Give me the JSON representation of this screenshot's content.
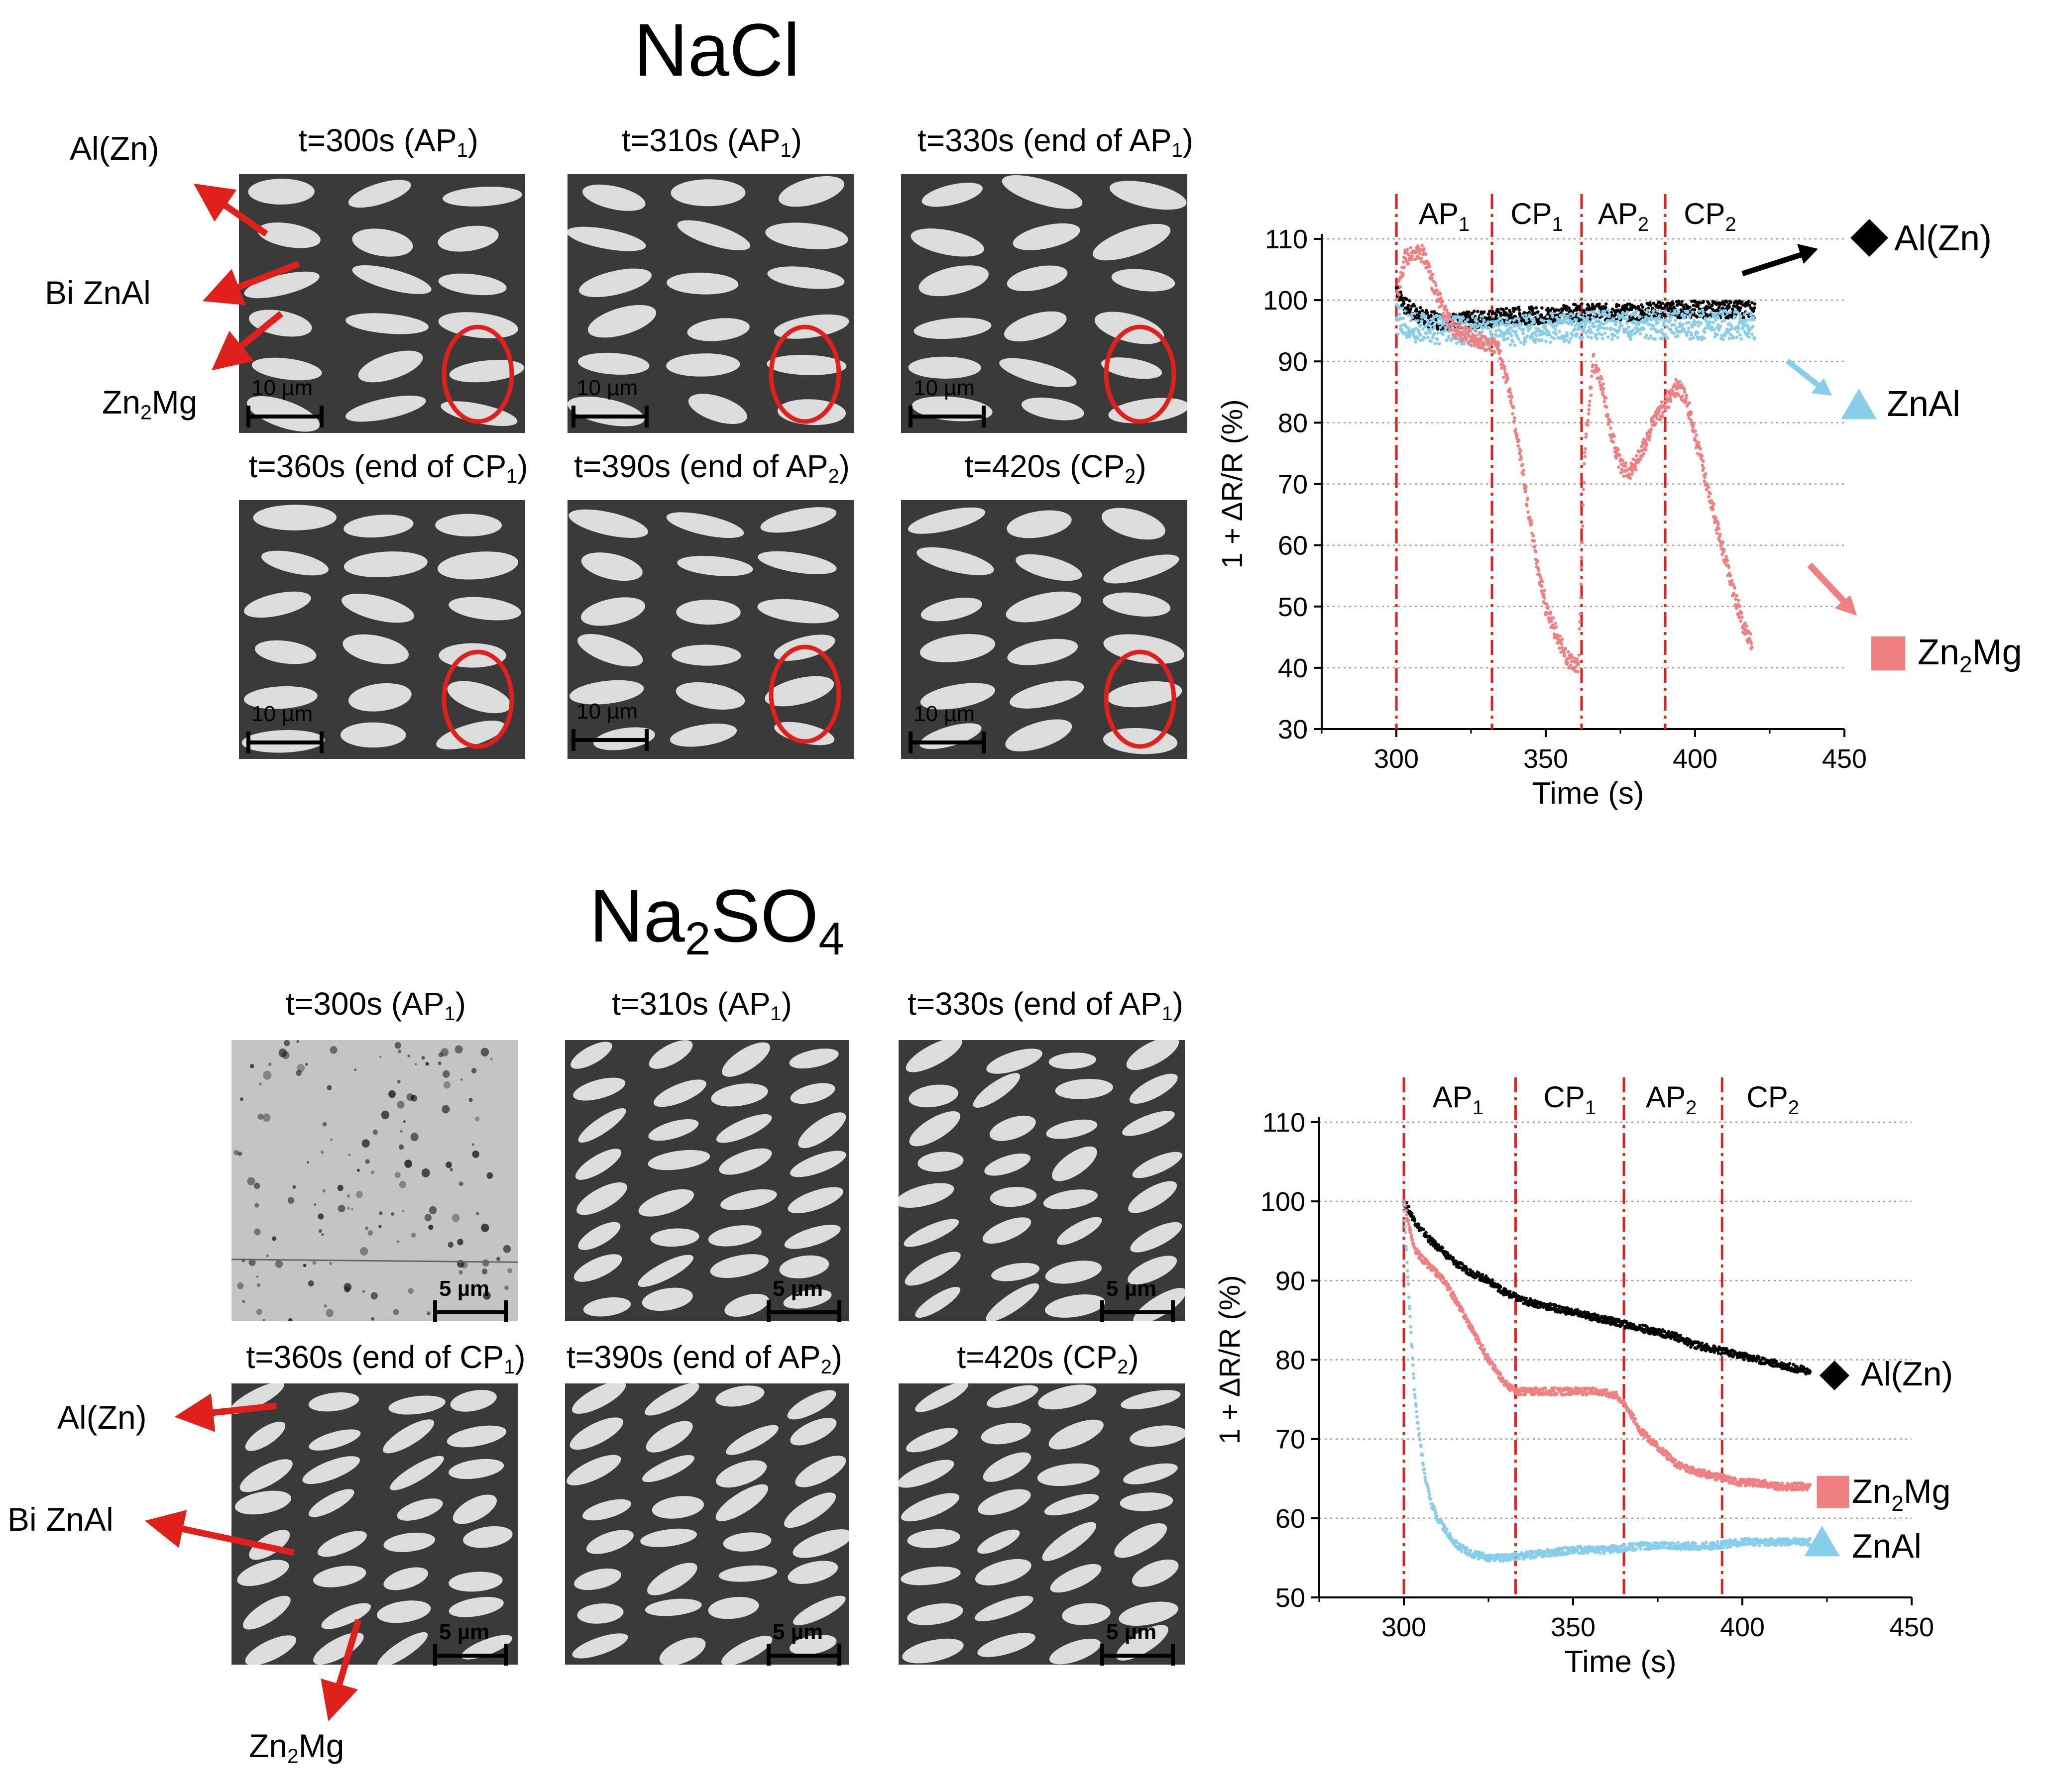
{
  "titles": {
    "nacl": "NaCl",
    "na2so4": {
      "base": "Na",
      "sub1": "2",
      "mid": "SO",
      "sub2": "4"
    }
  },
  "nacl_panels": [
    {
      "t": "t=300s (AP",
      "sub": "1",
      "tail": ")",
      "scale": "10 µm"
    },
    {
      "t": "t=310s (AP",
      "sub": "1",
      "tail": ")",
      "scale": "10 µm"
    },
    {
      "t": "t=330s (end of AP",
      "sub": "1",
      "tail": ")",
      "scale": "10 µm"
    },
    {
      "t": "t=360s (end of CP",
      "sub": "1",
      "tail": ")",
      "scale": "10 µm"
    },
    {
      "t": "t=390s (end of AP",
      "sub": "2",
      "tail": ")",
      "scale": "10 µm"
    },
    {
      "t": "t=420s (CP",
      "sub": "2",
      "tail": ")",
      "scale": "10 µm"
    }
  ],
  "na2so4_panels": [
    {
      "t": "t=300s (AP",
      "sub": "1",
      "tail": ")",
      "scale": "5 µm"
    },
    {
      "t": "t=310s (AP",
      "sub": "1",
      "tail": ")",
      "scale": "5 µm"
    },
    {
      "t": "t=330s (end of AP",
      "sub": "1",
      "tail": ")",
      "scale": "5 µm"
    },
    {
      "t": "t=360s (end of CP",
      "sub": "1",
      "tail": ")",
      "scale": "5 µm"
    },
    {
      "t": "t=390s (end of AP",
      "sub": "2",
      "tail": ")",
      "scale": "5 µm"
    },
    {
      "t": "t=420s (CP",
      "sub": "2",
      "tail": ")",
      "scale": "5 µm"
    }
  ],
  "phase_labels": {
    "alzn": "Al(Zn)",
    "bizn": "Bi ZnAl",
    "zn2mg": {
      "a": "Zn",
      "sub": "2",
      "b": "Mg"
    }
  },
  "colors": {
    "alzn": "#000000",
    "znal": "#87CEEB",
    "zn2mg": "#F08080",
    "arrow": "#E0201A",
    "ellipse": "#E0201A",
    "period_line": "#E0201A"
  },
  "chart_data": [
    {
      "type": "scatter",
      "panel": "NaCl",
      "xlabel": "Time (s)",
      "ylabel": "1 + ΔR/R (%)",
      "xlim": [
        275,
        450
      ],
      "ylim": [
        30,
        110
      ],
      "xticks": [
        300,
        350,
        400,
        450
      ],
      "yticks": [
        30,
        40,
        50,
        60,
        70,
        80,
        90,
        100,
        110
      ],
      "horizontal_grid": true,
      "period_boundaries": [
        300,
        332,
        362,
        390
      ],
      "periods": [
        {
          "base": "AP",
          "sub": "1",
          "x": 316
        },
        {
          "base": "CP",
          "sub": "1",
          "x": 347
        },
        {
          "base": "AP",
          "sub": "2",
          "x": 376
        },
        {
          "base": "CP",
          "sub": "2",
          "x": 405
        }
      ],
      "series": [
        {
          "name": "Al(Zn)",
          "marker": "diamond",
          "color": "#000000",
          "x": [
            300,
            303,
            306,
            310,
            315,
            320,
            330,
            340,
            350,
            360,
            370,
            380,
            390,
            400,
            410,
            420
          ],
          "y": [
            102,
            99,
            98,
            97,
            96.5,
            96.5,
            97,
            97.5,
            97.5,
            98,
            98,
            98,
            98.5,
            98.5,
            98.5,
            98.5
          ]
        },
        {
          "name": "ZnAl",
          "marker": "triangle",
          "color": "#87CEEB",
          "x": [
            300,
            303,
            306,
            310,
            315,
            320,
            330,
            340,
            350,
            360,
            370,
            380,
            390,
            400,
            410,
            420
          ],
          "y": [
            97,
            96,
            95.5,
            95.5,
            95,
            95,
            95,
            95,
            95.5,
            95.5,
            96,
            96,
            96,
            96,
            96,
            96
          ]
        },
        {
          "name": "Zn2Mg",
          "label": {
            "a": "Zn",
            "sub": "2",
            "b": "Mg"
          },
          "marker": "square",
          "color": "#F08080",
          "x": [
            300,
            303,
            306,
            309,
            312,
            316,
            320,
            325,
            330,
            334,
            338,
            342,
            346,
            350,
            354,
            358,
            361,
            363,
            366,
            369,
            372,
            375,
            378,
            382,
            386,
            390,
            394,
            397,
            400,
            404,
            408,
            412,
            416,
            419
          ],
          "y": [
            100,
            107,
            108,
            107.5,
            103,
            98,
            95,
            94,
            93,
            92,
            85,
            73,
            60,
            50,
            45,
            41,
            40,
            75,
            90,
            86,
            78,
            73,
            72,
            75,
            80,
            83,
            86,
            84,
            78,
            70,
            62,
            54,
            47,
            44
          ]
        }
      ],
      "end_labels": [
        "Al(Zn)",
        "ZnAl",
        "Zn2Mg"
      ]
    },
    {
      "type": "scatter",
      "panel": "Na2SO4",
      "xlabel": "Time (s)",
      "ylabel": "1 + ΔR/R (%)",
      "xlim": [
        275,
        450
      ],
      "ylim": [
        50,
        110
      ],
      "xticks": [
        300,
        350,
        400,
        450
      ],
      "yticks": [
        50,
        60,
        70,
        80,
        90,
        100,
        110
      ],
      "horizontal_grid": true,
      "period_boundaries": [
        300,
        333,
        365,
        394
      ],
      "periods": [
        {
          "base": "AP",
          "sub": "1",
          "x": 316
        },
        {
          "base": "CP",
          "sub": "1",
          "x": 349
        },
        {
          "base": "AP",
          "sub": "2",
          "x": 379
        },
        {
          "base": "CP",
          "sub": "2",
          "x": 409
        }
      ],
      "series": [
        {
          "name": "Al(Zn)",
          "marker": "diamond",
          "color": "#000000",
          "x": [
            300,
            304,
            308,
            312,
            316,
            320,
            325,
            330,
            335,
            340,
            345,
            350,
            355,
            360,
            365,
            370,
            375,
            380,
            385,
            390,
            395,
            400,
            405,
            410,
            415,
            420
          ],
          "y": [
            100,
            97,
            95,
            93.5,
            92,
            91,
            90,
            88.5,
            87.5,
            87,
            86.5,
            86,
            85.5,
            85,
            84.5,
            84,
            83.5,
            83,
            82,
            81.5,
            81,
            80.5,
            80,
            79.5,
            79,
            78.5
          ]
        },
        {
          "name": "Zn2Mg",
          "label": {
            "a": "Zn",
            "sub": "2",
            "b": "Mg"
          },
          "marker": "square",
          "color": "#F08080",
          "x": [
            300,
            303,
            307,
            312,
            316,
            320,
            325,
            330,
            333,
            338,
            345,
            352,
            358,
            363,
            366,
            370,
            375,
            380,
            385,
            390,
            395,
            400,
            405,
            410,
            415,
            420
          ],
          "y": [
            100,
            94,
            92,
            90,
            87,
            84,
            80,
            77,
            76,
            76,
            76,
            76,
            76,
            75.5,
            74,
            71,
            69,
            67,
            66,
            65.5,
            65,
            64.5,
            64.5,
            64,
            64,
            64
          ]
        },
        {
          "name": "ZnAl",
          "marker": "triangle",
          "color": "#87CEEB",
          "x": [
            300,
            301,
            302,
            303,
            304,
            306,
            308,
            310,
            313,
            316,
            320,
            325,
            330,
            340,
            350,
            360,
            370,
            380,
            390,
            400,
            410,
            420
          ],
          "y": [
            100,
            92,
            84,
            77,
            72,
            66,
            62,
            60,
            58,
            56.5,
            55.5,
            55,
            55,
            55.5,
            56,
            56,
            56.5,
            56.5,
            56.5,
            57,
            57,
            57
          ]
        }
      ],
      "end_labels": [
        "Al(Zn)",
        "Zn2Mg",
        "ZnAl"
      ]
    }
  ]
}
